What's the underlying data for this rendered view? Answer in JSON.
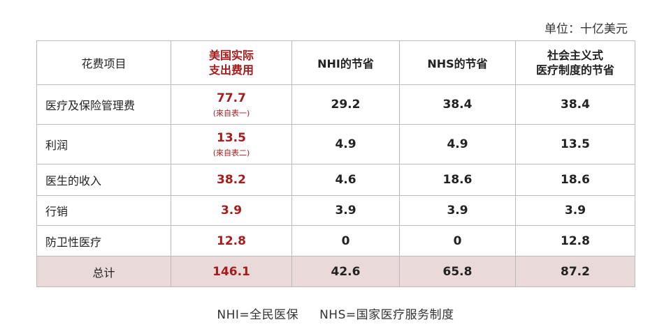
{
  "unit": "单位：十亿美元",
  "headers": {
    "item": "花费项目",
    "us_actual": [
      "美国实际",
      "支出费用"
    ],
    "nhi": "NHI的节省",
    "nhs": "NHS的节省",
    "socialist": [
      "社会主义式",
      "医疗制度的节省"
    ]
  },
  "rows": [
    {
      "item": "医疗及保险管理费",
      "us": "77.7",
      "us_note": "(來自表一)",
      "nhi": "29.2",
      "nhs": "38.4",
      "soc": "38.4"
    },
    {
      "item": "利润",
      "us": "13.5",
      "us_note": "(來自表二)",
      "nhi": "4.9",
      "nhs": "4.9",
      "soc": "13.5"
    },
    {
      "item": "医生的收入",
      "us": "38.2",
      "nhi": "4.6",
      "nhs": "18.6",
      "soc": "18.6"
    },
    {
      "item": "行销",
      "us": "3.9",
      "nhi": "3.9",
      "nhs": "3.9",
      "soc": "3.9"
    },
    {
      "item": "防卫性医疗",
      "us": "12.8",
      "nhi": "0",
      "nhs": "0",
      "soc": "12.8"
    }
  ],
  "total": {
    "item": "总计",
    "us": "146.1",
    "nhi": "42.6",
    "nhs": "65.8",
    "soc": "87.2"
  },
  "footnote": {
    "nhi": "NHI=全民医保",
    "nhs": "NHS=国家医疗服务制度"
  },
  "colors": {
    "accent_red": "#a61c1c",
    "total_row_bg": "#e9d9d9",
    "border": "#bcbcbc"
  }
}
